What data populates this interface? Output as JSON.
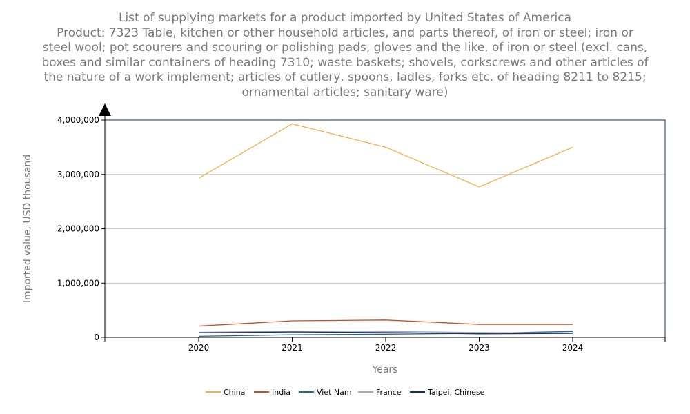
{
  "chart_data": {
    "type": "line",
    "title": "List of supplying markets for a product imported by United States of America",
    "subtitle_lines": [
      "Product: 7323 Table, kitchen or other household articles, and parts thereof, of iron or steel; iron or",
      "steel wool; pot scourers and scouring or polishing pads, gloves and the like, of iron or steel (excl. cans,",
      "boxes and similar containers of heading 7310; waste baskets; shovels, corkscrews and other articles of",
      "the nature of a work implement; articles of cutlery, spoons, ladles, forks etc. of heading 8211 to 8215;",
      "ornamental articles; sanitary ware)"
    ],
    "xlabel": "Years",
    "ylabel": "Imported value, USD thousand",
    "x": [
      "2020",
      "2021",
      "2022",
      "2023",
      "2024"
    ],
    "ylim": [
      0,
      4000000
    ],
    "yticks": [
      0,
      1000000,
      2000000,
      3000000,
      4000000
    ],
    "ytick_labels": [
      "0",
      "1,000,000",
      "2,000,000",
      "3,000,000",
      "4,000,000"
    ],
    "grid": true,
    "legend_position": "bottom",
    "series": [
      {
        "name": "China",
        "color": "#f5b04a",
        "values": [
          2930000,
          3930000,
          3500000,
          2770000,
          3500000
        ]
      },
      {
        "name": "India",
        "color": "#cc4a21",
        "values": [
          210000,
          305000,
          320000,
          240000,
          240000
        ]
      },
      {
        "name": "Viet Nam",
        "color": "#1f6b8f",
        "values": [
          20000,
          50000,
          60000,
          75000,
          110000
        ]
      },
      {
        "name": "France",
        "color": "#a8a8a8",
        "values": [
          95000,
          115000,
          110000,
          90000,
          80000
        ]
      },
      {
        "name": "Taipei, Chinese",
        "color": "#1b2f66",
        "values": [
          85000,
          100000,
          90000,
          65000,
          75000
        ]
      }
    ]
  }
}
